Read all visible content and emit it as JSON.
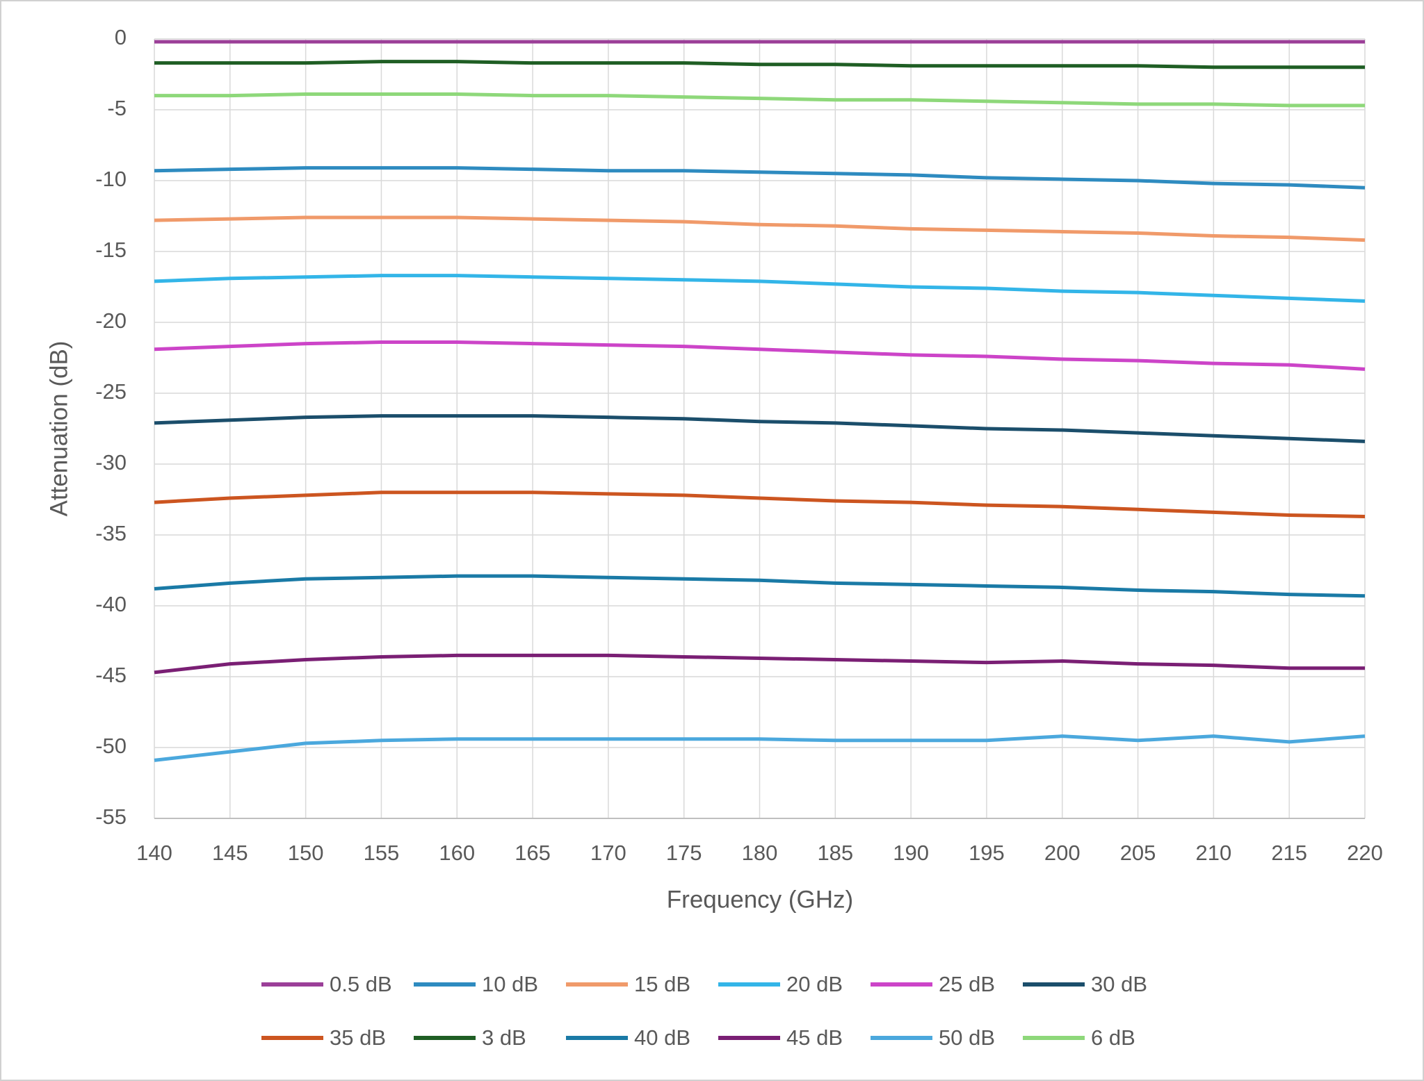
{
  "chart_data": {
    "type": "line",
    "x_label": "Frequency (GHz)",
    "y_label": "Attenuation (dB)",
    "x": [
      140,
      145,
      150,
      155,
      160,
      165,
      170,
      175,
      180,
      185,
      190,
      195,
      200,
      205,
      210,
      215,
      220
    ],
    "xlim": [
      140,
      220
    ],
    "xticks": [
      140,
      145,
      150,
      155,
      160,
      165,
      170,
      175,
      180,
      185,
      190,
      195,
      200,
      205,
      210,
      215,
      220
    ],
    "ylim": [
      -55,
      0
    ],
    "yticks": [
      0,
      -5,
      -10,
      -15,
      -20,
      -25,
      -30,
      -35,
      -40,
      -45,
      -50,
      -55
    ],
    "grid": true,
    "legend": "bottom",
    "series": [
      {
        "name": "0.5 dB",
        "color": "#9b3f98",
        "values": [
          -0.2,
          -0.2,
          -0.2,
          -0.2,
          -0.2,
          -0.2,
          -0.2,
          -0.2,
          -0.2,
          -0.2,
          -0.2,
          -0.2,
          -0.2,
          -0.2,
          -0.2,
          -0.2,
          -0.2
        ]
      },
      {
        "name": "10 dB",
        "color": "#2e8bc0",
        "values": [
          -9.3,
          -9.2,
          -9.1,
          -9.1,
          -9.1,
          -9.2,
          -9.3,
          -9.3,
          -9.4,
          -9.5,
          -9.6,
          -9.8,
          -9.9,
          -10.0,
          -10.2,
          -10.3,
          -10.5
        ]
      },
      {
        "name": "15 dB",
        "color": "#f09a6a",
        "values": [
          -12.8,
          -12.7,
          -12.6,
          -12.6,
          -12.6,
          -12.7,
          -12.8,
          -12.9,
          -13.1,
          -13.2,
          -13.4,
          -13.5,
          -13.6,
          -13.7,
          -13.9,
          -14.0,
          -14.2
        ]
      },
      {
        "name": "20 dB",
        "color": "#33b5e8",
        "values": [
          -17.1,
          -16.9,
          -16.8,
          -16.7,
          -16.7,
          -16.8,
          -16.9,
          -17.0,
          -17.1,
          -17.3,
          -17.5,
          -17.6,
          -17.8,
          -17.9,
          -18.1,
          -18.3,
          -18.5
        ]
      },
      {
        "name": "25 dB",
        "color": "#cc44c8",
        "values": [
          -21.9,
          -21.7,
          -21.5,
          -21.4,
          -21.4,
          -21.5,
          -21.6,
          -21.7,
          -21.9,
          -22.1,
          -22.3,
          -22.4,
          -22.6,
          -22.7,
          -22.9,
          -23.0,
          -23.3
        ]
      },
      {
        "name": "30 dB",
        "color": "#1b4e6b",
        "values": [
          -27.1,
          -26.9,
          -26.7,
          -26.6,
          -26.6,
          -26.6,
          -26.7,
          -26.8,
          -27.0,
          -27.1,
          -27.3,
          -27.5,
          -27.6,
          -27.8,
          -28.0,
          -28.2,
          -28.4
        ]
      },
      {
        "name": "35 dB",
        "color": "#cc5520",
        "values": [
          -32.7,
          -32.4,
          -32.2,
          -32.0,
          -32.0,
          -32.0,
          -32.1,
          -32.2,
          -32.4,
          -32.6,
          -32.7,
          -32.9,
          -33.0,
          -33.2,
          -33.4,
          -33.6,
          -33.7
        ]
      },
      {
        "name": "3 dB",
        "color": "#1f5e24",
        "values": [
          -1.7,
          -1.7,
          -1.7,
          -1.6,
          -1.6,
          -1.7,
          -1.7,
          -1.7,
          -1.8,
          -1.8,
          -1.9,
          -1.9,
          -1.9,
          -1.9,
          -2.0,
          -2.0,
          -2.0
        ]
      },
      {
        "name": "40 dB",
        "color": "#1a7aa6",
        "values": [
          -38.8,
          -38.4,
          -38.1,
          -38.0,
          -37.9,
          -37.9,
          -38.0,
          -38.1,
          -38.2,
          -38.4,
          -38.5,
          -38.6,
          -38.7,
          -38.9,
          -39.0,
          -39.2,
          -39.3
        ]
      },
      {
        "name": "45 dB",
        "color": "#7a1f74",
        "values": [
          -44.7,
          -44.1,
          -43.8,
          -43.6,
          -43.5,
          -43.5,
          -43.5,
          -43.6,
          -43.7,
          -43.8,
          -43.9,
          -44.0,
          -43.9,
          -44.1,
          -44.2,
          -44.4,
          -44.4
        ]
      },
      {
        "name": "50 dB",
        "color": "#4ba8dd",
        "values": [
          -50.9,
          -50.3,
          -49.7,
          -49.5,
          -49.4,
          -49.4,
          -49.4,
          -49.4,
          -49.4,
          -49.5,
          -49.5,
          -49.5,
          -49.2,
          -49.5,
          -49.2,
          -49.6,
          -49.2
        ]
      },
      {
        "name": "6 dB",
        "color": "#8ed87a",
        "values": [
          -4.0,
          -4.0,
          -3.9,
          -3.9,
          -3.9,
          -4.0,
          -4.0,
          -4.1,
          -4.2,
          -4.3,
          -4.3,
          -4.4,
          -4.5,
          -4.6,
          -4.6,
          -4.7,
          -4.7
        ]
      }
    ]
  }
}
